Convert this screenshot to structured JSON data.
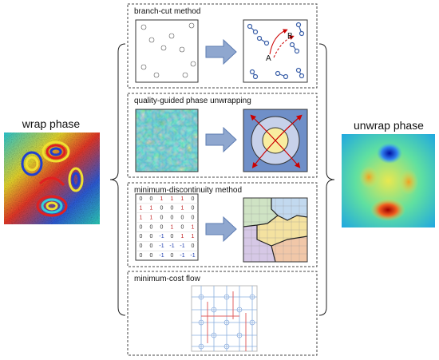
{
  "left": {
    "label": "wrap phase"
  },
  "right": {
    "label": "unwrap phase"
  },
  "methods": [
    {
      "title": "branch-cut method",
      "labels": [
        "A",
        "B"
      ]
    },
    {
      "title": "quality-guided phase unwrapping"
    },
    {
      "title": "minimum-discontinuity method",
      "matrix": [
        [
          0,
          0,
          1,
          1,
          1,
          0
        ],
        [
          1,
          1,
          0,
          0,
          1,
          0
        ],
        [
          1,
          1,
          0,
          0,
          0,
          0
        ],
        [
          0,
          0,
          0,
          1,
          0,
          1
        ],
        [
          0,
          0,
          -1,
          0,
          1,
          1
        ],
        [
          0,
          0,
          -1,
          -1,
          -1,
          0
        ],
        [
          0,
          0,
          -1,
          0,
          -1,
          -1
        ]
      ]
    },
    {
      "title": "minimum-cost flow"
    }
  ]
}
